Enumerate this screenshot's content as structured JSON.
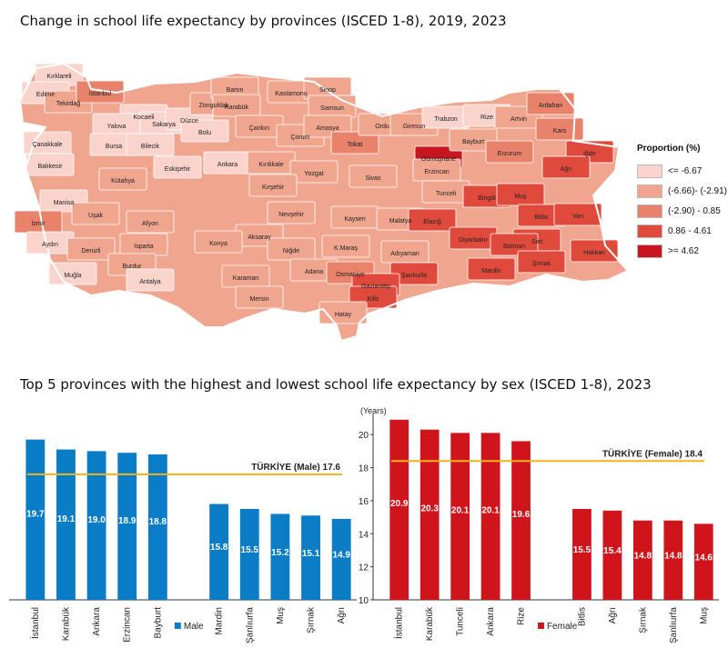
{
  "titles": {
    "map": "Change in school life expectancy by provinces (ISCED 1-8), 2019, 2023",
    "bars": "Top 5 provinces with the highest and lowest school life expectancy by sex (ISCED 1-8), 2023"
  },
  "legend": {
    "title": "Proportion (%)",
    "items": [
      {
        "label": "<= -6.67",
        "color": "#f9d3cc"
      },
      {
        "label": "(-6.66)- (-2.91)",
        "color": "#f0a58f"
      },
      {
        "label": "(-2.90) - 0.85",
        "color": "#e8826b"
      },
      {
        "label": "0.86 - 4.61",
        "color": "#e04a3c"
      },
      {
        "label": ">= 4.62",
        "color": "#c8151f"
      }
    ]
  },
  "map_labels": [
    {
      "name": "Kırklareli",
      "c": 0
    },
    {
      "name": "Edirne",
      "c": 0
    },
    {
      "name": "Tekirdağ",
      "c": 1
    },
    {
      "name": "İstanbul",
      "c": 2
    },
    {
      "name": "Kocaeli",
      "c": 0
    },
    {
      "name": "Yalova",
      "c": 0
    },
    {
      "name": "Sakarya",
      "c": 0
    },
    {
      "name": "Düzce",
      "c": 0
    },
    {
      "name": "Zonguldak",
      "c": 1
    },
    {
      "name": "Bartın",
      "c": 1
    },
    {
      "name": "Karabük",
      "c": 1
    },
    {
      "name": "Kastamonu",
      "c": 1
    },
    {
      "name": "Sinop",
      "c": 1
    },
    {
      "name": "Samsun",
      "c": 1
    },
    {
      "name": "Çankırı",
      "c": 1
    },
    {
      "name": "Bolu",
      "c": 0
    },
    {
      "name": "Çorum",
      "c": 1
    },
    {
      "name": "Amasya",
      "c": 1
    },
    {
      "name": "Tokat",
      "c": 2
    },
    {
      "name": "Ordu",
      "c": 1
    },
    {
      "name": "Giresun",
      "c": 1
    },
    {
      "name": "Trabzon",
      "c": 0
    },
    {
      "name": "Rize",
      "c": 0
    },
    {
      "name": "Artvin",
      "c": 1
    },
    {
      "name": "Ardahan",
      "c": 2
    },
    {
      "name": "Kars",
      "c": 2
    },
    {
      "name": "Iğdır",
      "c": 3
    },
    {
      "name": "Gümüşhane",
      "c": 4
    },
    {
      "name": "Bayburt",
      "c": 1
    },
    {
      "name": "Erzurum",
      "c": 2
    },
    {
      "name": "Ağrı",
      "c": 3
    },
    {
      "name": "Çanakkale",
      "c": 0
    },
    {
      "name": "Balıkesir",
      "c": 0
    },
    {
      "name": "Bursa",
      "c": 0
    },
    {
      "name": "Bilecik",
      "c": 0
    },
    {
      "name": "Eskişehir",
      "c": 0
    },
    {
      "name": "Ankara",
      "c": 0
    },
    {
      "name": "Kırıkkale",
      "c": 1
    },
    {
      "name": "Kütahya",
      "c": 1
    },
    {
      "name": "Yozgat",
      "c": 1
    },
    {
      "name": "Sivas",
      "c": 1
    },
    {
      "name": "Erzincan",
      "c": 1
    },
    {
      "name": "Tunceli",
      "c": 1
    },
    {
      "name": "Bingöl",
      "c": 3
    },
    {
      "name": "Muş",
      "c": 3
    },
    {
      "name": "Bitlis",
      "c": 3
    },
    {
      "name": "Van",
      "c": 3
    },
    {
      "name": "Kırşehir",
      "c": 1
    },
    {
      "name": "Nevşehir",
      "c": 1
    },
    {
      "name": "Manisa",
      "c": 0
    },
    {
      "name": "Uşak",
      "c": 1
    },
    {
      "name": "Afyon",
      "c": 1
    },
    {
      "name": "İzmir",
      "c": 2
    },
    {
      "name": "Kayseri",
      "c": 1
    },
    {
      "name": "Malatya",
      "c": 1
    },
    {
      "name": "Elazığ",
      "c": 3
    },
    {
      "name": "Diyarbakır",
      "c": 3
    },
    {
      "name": "Siirt",
      "c": 3
    },
    {
      "name": "Batman",
      "c": 3
    },
    {
      "name": "Hakkari",
      "c": 3
    },
    {
      "name": "Aksaray",
      "c": 1
    },
    {
      "name": "Aydın",
      "c": 0
    },
    {
      "name": "Denizli",
      "c": 1
    },
    {
      "name": "Isparta",
      "c": 1
    },
    {
      "name": "Konya",
      "c": 1
    },
    {
      "name": "Niğde",
      "c": 1
    },
    {
      "name": "K.Maraş",
      "c": 1
    },
    {
      "name": "Adıyaman",
      "c": 1
    },
    {
      "name": "Şırnak",
      "c": 3
    },
    {
      "name": "Burdur",
      "c": 1
    },
    {
      "name": "Muğla",
      "c": 0
    },
    {
      "name": "Antalya",
      "c": 0
    },
    {
      "name": "Karaman",
      "c": 1
    },
    {
      "name": "Adana",
      "c": 1
    },
    {
      "name": "Osmaniye",
      "c": 2
    },
    {
      "name": "Şanlıurfa",
      "c": 3
    },
    {
      "name": "Mardin",
      "c": 3
    },
    {
      "name": "Gaziantep",
      "c": 3
    },
    {
      "name": "Kilis",
      "c": 3
    },
    {
      "name": "Mersin",
      "c": 1
    },
    {
      "name": "Hatay",
      "c": 1
    }
  ],
  "chart_data": [
    {
      "type": "bar",
      "title": "",
      "categories": [
        "İstanbul",
        "Karabük",
        "Ankara",
        "Erzincan",
        "Bayburt",
        "Mardin",
        "Şanlıurfa",
        "Muş",
        "Şırnak",
        "Ağrı"
      ],
      "series": [
        {
          "name": "Male",
          "values": [
            19.7,
            19.1,
            19.0,
            18.9,
            18.8,
            15.8,
            15.5,
            15.2,
            15.1,
            14.9
          ],
          "color": "#0a7dc6"
        }
      ],
      "reference": {
        "label": "TÜRKİYE (Male) 17.6",
        "value": 17.6,
        "color": "#f2b21e"
      },
      "ylim": [
        10,
        21
      ],
      "ylabel": "",
      "grid": false,
      "legend_position": "bottom-center"
    },
    {
      "type": "bar",
      "title": "",
      "categories": [
        "İstanbul",
        "Karabük",
        "Tunceli",
        "Ankara",
        "Rize",
        "Bitlis",
        "Ağrı",
        "Şırnak",
        "Şanlıurfa",
        "Muş"
      ],
      "series": [
        {
          "name": "Female",
          "values": [
            20.9,
            20.3,
            20.1,
            20.1,
            19.6,
            15.5,
            15.4,
            14.8,
            14.8,
            14.6
          ],
          "color": "#d0141b"
        }
      ],
      "reference": {
        "label": "TÜRKİYE (Female) 18.4",
        "value": 18.4,
        "color": "#f2b21e"
      },
      "ylim": [
        10,
        21
      ],
      "yticks": [
        10,
        12,
        14,
        16,
        18,
        20
      ],
      "ylabel": "(Years)",
      "grid": false,
      "legend_position": "bottom-center"
    }
  ]
}
